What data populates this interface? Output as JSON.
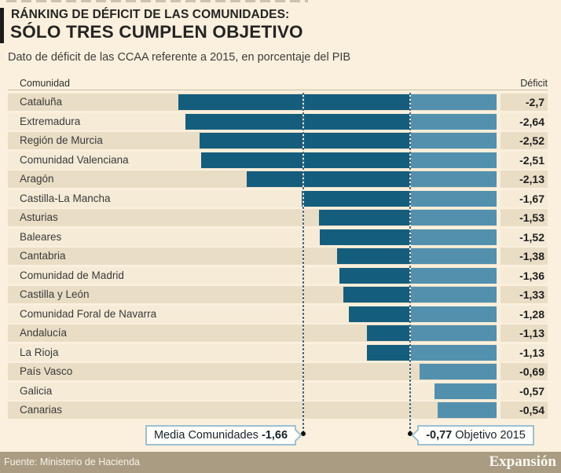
{
  "header": {
    "kicker": "RÁNKING DE DÉFICIT DE LAS COMUNIDADES:",
    "title": "SÓLO TRES CUMPLEN OBJETIVO",
    "subtitle": "Dato de déficit de las CCAA referente a 2015, en porcentaje del PIB"
  },
  "table": {
    "col_community": "Comunidad",
    "col_deficit": "Déficit"
  },
  "chart_data": {
    "type": "bar",
    "orientation": "horizontal",
    "unit": "porcentaje del PIB",
    "xlim": [
      -3,
      0
    ],
    "categories": [
      "Cataluña",
      "Extremadura",
      "Región de Murcia",
      "Comunidad Valenciana",
      "Aragón",
      "Castilla-La Mancha",
      "Asturias",
      "Baleares",
      "Cantabria",
      "Comunidad de Madrid",
      "Castilla y León",
      "Comunidad Foral de Navarra",
      "Andalucía",
      "La Rioja",
      "País Vasco",
      "Galicia",
      "Canarias"
    ],
    "values": [
      -2.7,
      -2.64,
      -2.52,
      -2.51,
      -2.13,
      -1.67,
      -1.53,
      -1.52,
      -1.38,
      -1.36,
      -1.33,
      -1.28,
      -1.13,
      -1.13,
      -0.69,
      -0.57,
      -0.54
    ],
    "value_labels": [
      "-2,7",
      "-2,64",
      "-2,52",
      "-2,51",
      "-2,13",
      "-1,67",
      "-1,53",
      "-1,52",
      "-1,38",
      "-1,36",
      "-1,33",
      "-1,28",
      "-1,13",
      "-1,13",
      "-0,69",
      "-0,57",
      "-0,54"
    ],
    "annotations": {
      "media": {
        "label": "Media Comunidades",
        "value": -1.66,
        "value_label": "-1,66"
      },
      "objective": {
        "label": "Objetivo 2015",
        "value": -0.77,
        "value_label": "-0,77"
      }
    },
    "colors": {
      "bar_dark": "#155d7d",
      "bar_light": "#5390ae",
      "row_odd": "#e9ddc5",
      "row_even": "#f5ebd7",
      "background": "#faf0dd"
    }
  },
  "footer": {
    "source": "Fuente: Ministerio de Hacienda",
    "brand": "Expansión"
  }
}
